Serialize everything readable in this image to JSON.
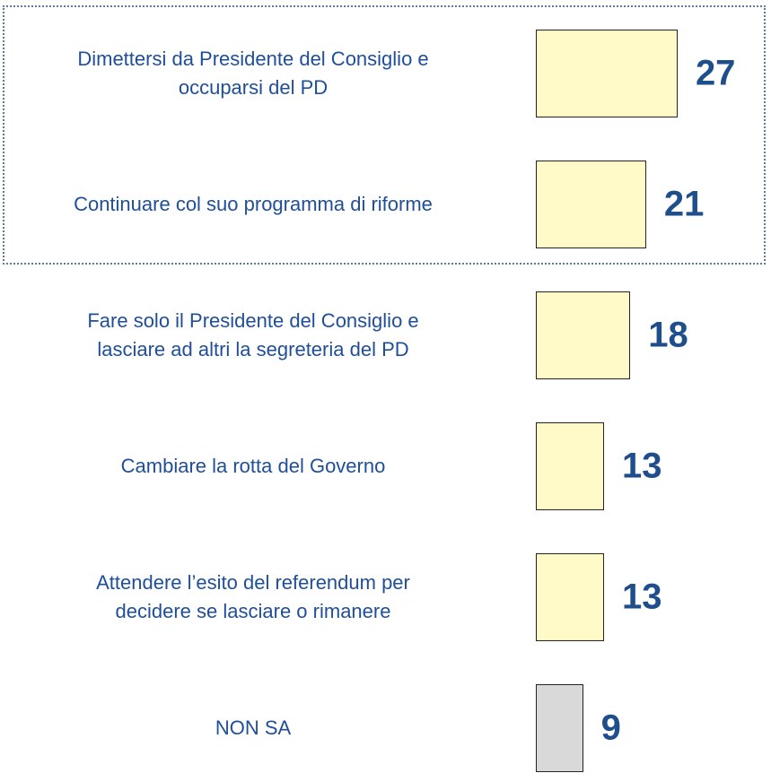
{
  "chart_data": {
    "type": "bar",
    "orientation": "horizontal",
    "categories": [
      "Dimettersi da Presidente del Consiglio e\noccuparsi del PD",
      "Continuare col suo programma di riforme",
      "Fare solo il Presidente del Consiglio e\nlasciare ad altri la segreteria del PD",
      "Cambiare la rotta del Governo",
      "Attendere l’esito del referendum per\ndecidere se lasciare o rimanere",
      "NON SA"
    ],
    "values": [
      27,
      21,
      18,
      13,
      13,
      9
    ],
    "colors": [
      "#fffac8",
      "#fffac8",
      "#fffac8",
      "#fffac8",
      "#fffac8",
      "#d9d9d9"
    ]
  }
}
